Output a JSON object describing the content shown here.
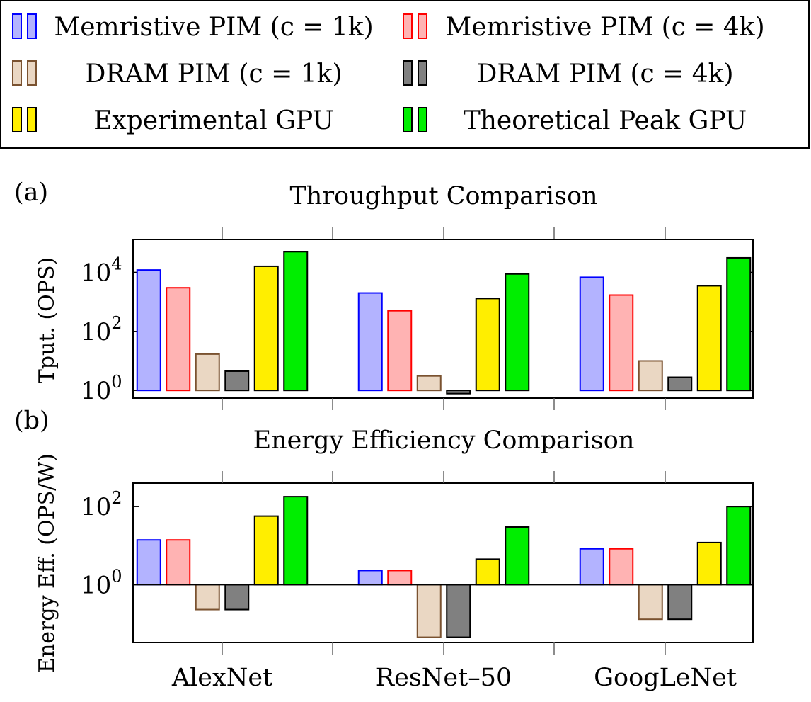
{
  "legend": [
    {
      "label": "Memristive PIM (c = 1k)",
      "fill": "#b3b3ff",
      "stroke": "#0000ff"
    },
    {
      "label": "Memristive PIM (c = 4k)",
      "fill": "#ffb3b3",
      "stroke": "#ff0000"
    },
    {
      "label": "DRAM PIM (c = 1k)",
      "fill": "#ead7c3",
      "stroke": "#7a5230"
    },
    {
      "label": "DRAM PIM (c = 4k)",
      "fill": "#808080",
      "stroke": "#000000"
    },
    {
      "label": "Experimental GPU",
      "fill": "#ffee00",
      "stroke": "#000000"
    },
    {
      "label": "Theoretical Peak GPU",
      "fill": "#00ee00",
      "stroke": "#000000"
    }
  ],
  "chart_data": [
    {
      "type": "bar",
      "panel_label": "(a)",
      "title": "Throughput Comparison",
      "ylabel": "Tput. (OPS)",
      "yscale": "log",
      "baseline": 1,
      "ylim": [
        0.55,
        130000
      ],
      "yticks": [
        1,
        100,
        10000
      ],
      "ytick_labels": [
        {
          "base": "10",
          "exp": "0"
        },
        {
          "base": "10",
          "exp": "2"
        },
        {
          "base": "10",
          "exp": "4"
        }
      ],
      "categories": [
        "AlexNet",
        "ResNet–50",
        "GoogLeNet"
      ],
      "series": [
        {
          "name": "Memristive PIM (c = 1k)",
          "values": [
            12000,
            2000,
            6800
          ]
        },
        {
          "name": "Memristive PIM (c = 4k)",
          "values": [
            3000,
            500,
            1700
          ]
        },
        {
          "name": "DRAM PIM (c = 1k)",
          "values": [
            17,
            3.1,
            10
          ]
        },
        {
          "name": "DRAM PIM (c = 4k)",
          "values": [
            4.5,
            0.78,
            2.8
          ]
        },
        {
          "name": "Experimental GPU",
          "values": [
            16000,
            1300,
            3500
          ]
        },
        {
          "name": "Theoretical Peak GPU",
          "values": [
            50000,
            8800,
            31000
          ]
        }
      ]
    },
    {
      "type": "bar",
      "panel_label": "(b)",
      "title": "Energy Efficiency Comparison",
      "ylabel": "Energy Eff. (OPS/W)",
      "yscale": "log",
      "baseline": 1,
      "ylim": [
        0.033,
        400
      ],
      "yticks": [
        1,
        100
      ],
      "ytick_labels": [
        {
          "base": "10",
          "exp": "0"
        },
        {
          "base": "10",
          "exp": "2"
        }
      ],
      "categories": [
        "AlexNet",
        "ResNet–50",
        "GoogLeNet"
      ],
      "series": [
        {
          "name": "Memristive PIM (c = 1k)",
          "values": [
            14,
            2.3,
            8.3
          ]
        },
        {
          "name": "Memristive PIM (c = 4k)",
          "values": [
            14,
            2.3,
            8.3
          ]
        },
        {
          "name": "DRAM PIM (c = 1k)",
          "values": [
            0.23,
            0.045,
            0.13
          ]
        },
        {
          "name": "DRAM PIM (c = 4k)",
          "values": [
            0.23,
            0.045,
            0.13
          ]
        },
        {
          "name": "Experimental GPU",
          "values": [
            57,
            4.5,
            12
          ]
        },
        {
          "name": "Theoretical Peak GPU",
          "values": [
            180,
            30,
            100
          ]
        }
      ]
    }
  ]
}
